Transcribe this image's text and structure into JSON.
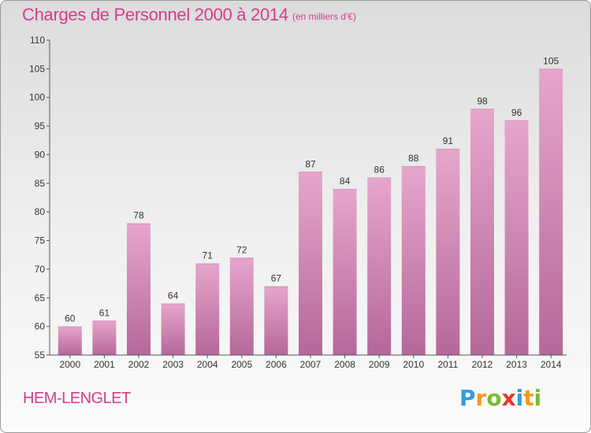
{
  "header": {
    "title": "Charges de Personnel 2000 à 2014",
    "subtitle": "(en milliers d'€)"
  },
  "footer": {
    "commune": "HEM-LENGLET",
    "logo_letters": [
      "P",
      "r",
      "o",
      "x",
      "i",
      "t",
      "i"
    ]
  },
  "colors": {
    "accent": "#d63c8c",
    "bar_light": "#e6a6cc",
    "bar_dark": "#b5689a"
  },
  "chart_data": {
    "type": "bar",
    "title": "Charges de Personnel 2000 à 2014",
    "subtitle": "(en milliers d'€)",
    "xlabel": "",
    "ylabel": "",
    "categories": [
      "2000",
      "2001",
      "2002",
      "2003",
      "2004",
      "2005",
      "2006",
      "2007",
      "2008",
      "2009",
      "2010",
      "2011",
      "2012",
      "2013",
      "2014"
    ],
    "values": [
      60,
      61,
      78,
      64,
      71,
      72,
      67,
      87,
      84,
      86,
      88,
      91,
      98,
      96,
      105
    ],
    "ylim": [
      55,
      110
    ],
    "yticks": [
      55,
      60,
      65,
      70,
      75,
      80,
      85,
      90,
      95,
      100,
      105,
      110
    ],
    "grid": false,
    "legend": "none"
  }
}
